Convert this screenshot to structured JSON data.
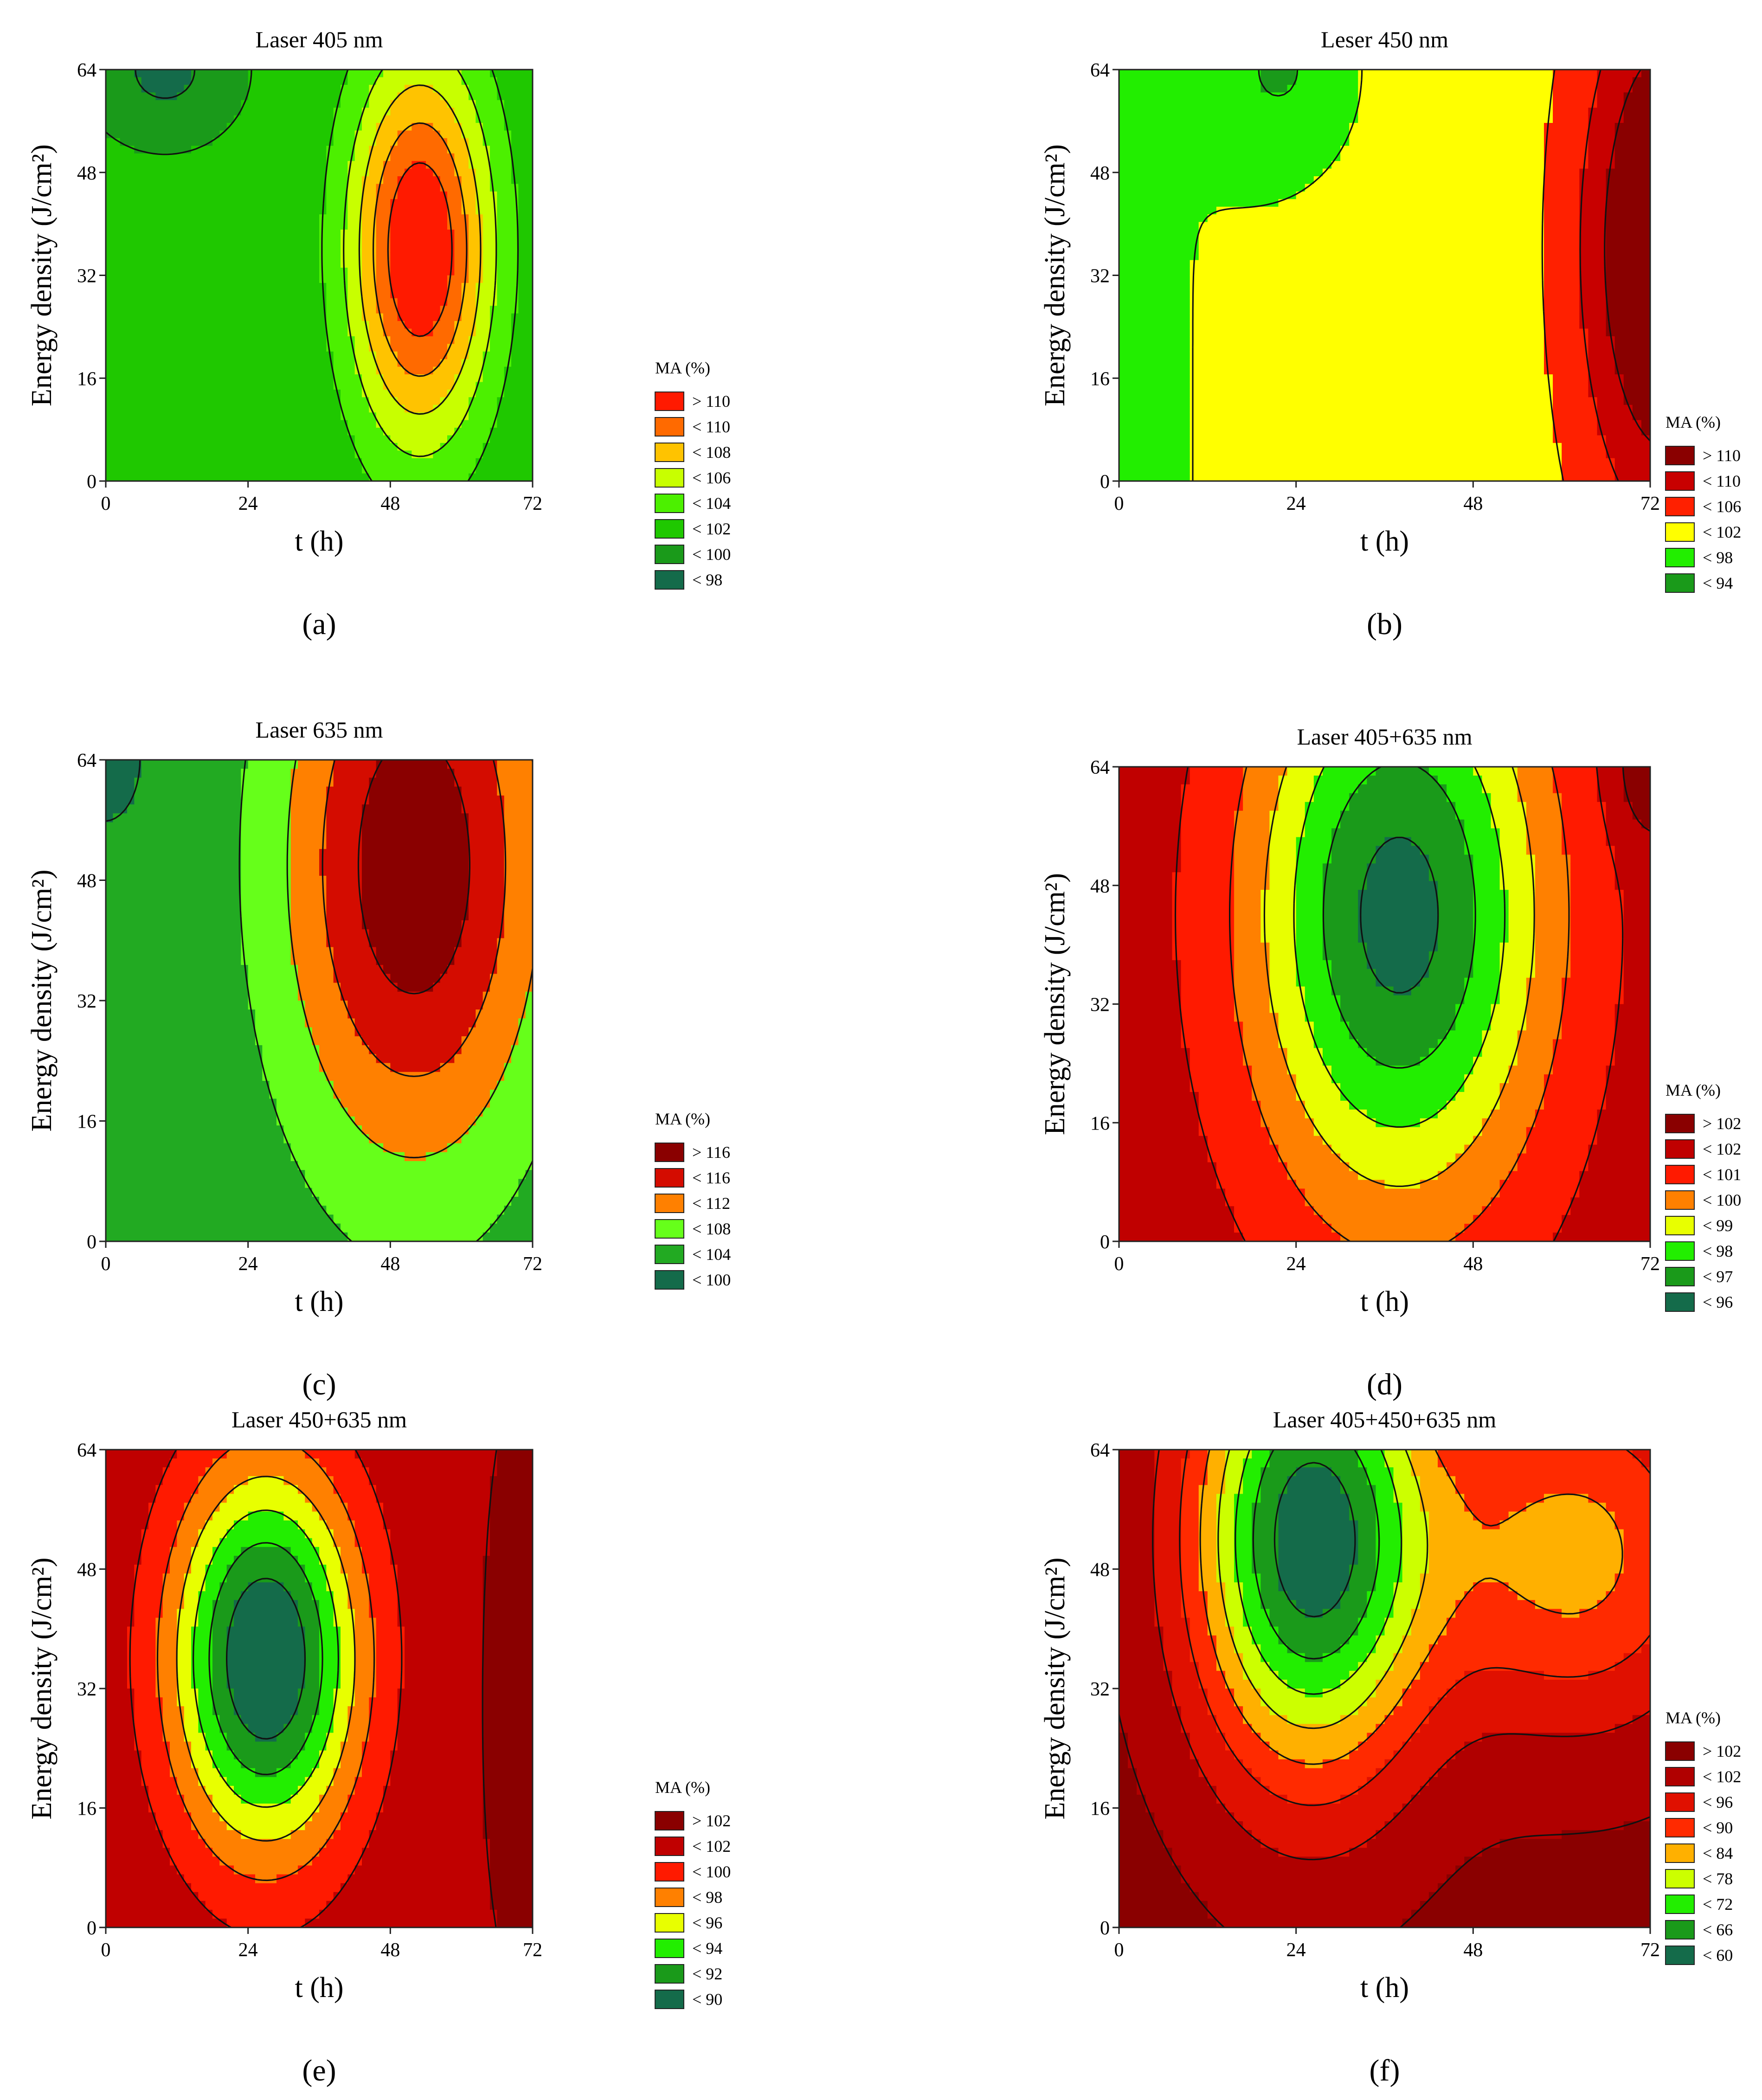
{
  "chart_data": [
    {
      "type": "contour",
      "panel": "a",
      "caption": "(a)",
      "title": "Laser 405 nm",
      "xlabel": "t (h)",
      "ylabel": "Energy density (J/cm²)",
      "xticks": [
        "0",
        "24",
        "48",
        "72"
      ],
      "yticks": [
        "0",
        "16",
        "32",
        "48",
        "64"
      ],
      "xlim": [
        0,
        72
      ],
      "ylim": [
        0,
        64
      ],
      "dashed_contours": true,
      "legend_title": "MA (%)",
      "legend": [
        {
          "label": "> 110",
          "color": "#ff1a00"
        },
        {
          "label": "< 110",
          "color": "#ff6a00"
        },
        {
          "label": "< 108",
          "color": "#ffc300"
        },
        {
          "label": "< 106",
          "color": "#c8ff00"
        },
        {
          "label": "< 104",
          "color": "#4cf000"
        },
        {
          "label": "< 102",
          "color": "#1fc800"
        },
        {
          "label": "< 100",
          "color": "#1a9a1a"
        },
        {
          "label": "< 98",
          "color": "#146b4a"
        }
      ],
      "field": {
        "base": 100.2,
        "peaks": [
          {
            "x": 53,
            "y": 36,
            "sx": 12,
            "sy": 30,
            "a": 12
          },
          {
            "x": 10,
            "y": 64,
            "sx": 9,
            "sy": 8,
            "a": -3
          }
        ],
        "trend": {
          "x": 0,
          "y": 0,
          "xy": 0
        }
      }
    },
    {
      "type": "contour",
      "panel": "b",
      "caption": "(b)",
      "title": "Leser 450 nm",
      "xlabel": "t (h)",
      "ylabel": "Energy density (J/cm²)",
      "xticks": [
        "0",
        "24",
        "48",
        "72"
      ],
      "yticks": [
        "0",
        "16",
        "32",
        "48",
        "64"
      ],
      "xlim": [
        0,
        72
      ],
      "ylim": [
        0,
        64
      ],
      "dashed_contours": false,
      "legend_title": "MA (%)",
      "legend": [
        {
          "label": "> 110",
          "color": "#8a0000"
        },
        {
          "label": "< 110",
          "color": "#c80000"
        },
        {
          "label": "< 106",
          "color": "#ff2000"
        },
        {
          "label": "< 102",
          "color": "#ffff00"
        },
        {
          "label": "< 98",
          "color": "#22ee00"
        },
        {
          "label": "< 94",
          "color": "#1a9a1a"
        }
      ],
      "field": {
        "base": 97.5,
        "peaks": [
          {
            "x": 74,
            "y": 36,
            "sx": 11,
            "sy": 40,
            "a": 16
          },
          {
            "x": 22,
            "y": 64,
            "sx": 9,
            "sy": 14,
            "a": -5
          }
        ],
        "trend": {
          "x": 0.05,
          "y": 0,
          "xy": 0
        }
      }
    },
    {
      "type": "contour",
      "panel": "c",
      "caption": "(c)",
      "title": "Laser 635 nm",
      "xlabel": "t (h)",
      "ylabel": "Energy density (J/cm²)",
      "xticks": [
        "0",
        "24",
        "48",
        "72"
      ],
      "yticks": [
        "0",
        "16",
        "32",
        "48",
        "64"
      ],
      "xlim": [
        0,
        72
      ],
      "ylim": [
        0,
        64
      ],
      "dashed_contours": false,
      "legend_title": "MA (%)",
      "legend": [
        {
          "label": "> 116",
          "color": "#8a0000"
        },
        {
          "label": "< 116",
          "color": "#d40c00"
        },
        {
          "label": "< 112",
          "color": "#ff8000"
        },
        {
          "label": "< 108",
          "color": "#66ff1a"
        },
        {
          "label": "< 104",
          "color": "#22aa22"
        },
        {
          "label": "< 100",
          "color": "#146b4a"
        }
      ],
      "field": {
        "base": 101,
        "peaks": [
          {
            "x": 52,
            "y": 50,
            "sx": 22,
            "sy": 40,
            "a": 18
          },
          {
            "x": 0,
            "y": 64,
            "sx": 6,
            "sy": 8,
            "a": -3
          }
        ],
        "trend": {
          "x": 0,
          "y": 0,
          "xy": 0
        }
      }
    },
    {
      "type": "contour",
      "panel": "d",
      "caption": "(d)",
      "title": "Laser 405+635 nm",
      "xlabel": "t (h)",
      "ylabel": "Energy density (J/cm²)",
      "xticks": [
        "0",
        "24",
        "48",
        "72"
      ],
      "yticks": [
        "0",
        "16",
        "32",
        "48",
        "64"
      ],
      "xlim": [
        0,
        72
      ],
      "ylim": [
        0,
        64
      ],
      "dashed_contours": false,
      "legend_title": "MA (%)",
      "legend": [
        {
          "label": "> 102",
          "color": "#8a0000"
        },
        {
          "label": "< 102",
          "color": "#c00000"
        },
        {
          "label": "< 101",
          "color": "#ff1a00"
        },
        {
          "label": "< 100",
          "color": "#ff8000"
        },
        {
          "label": "< 99",
          "color": "#e8ff00"
        },
        {
          "label": "< 98",
          "color": "#22ee00"
        },
        {
          "label": "< 97",
          "color": "#1a9a1a"
        },
        {
          "label": "< 96",
          "color": "#146b4a"
        }
      ],
      "field": {
        "base": 101.6,
        "peaks": [
          {
            "x": 38,
            "y": 44,
            "sx": 20,
            "sy": 40,
            "a": -6
          },
          {
            "x": 72,
            "y": 64,
            "sx": 5,
            "sy": 10,
            "a": 1.5
          }
        ],
        "trend": {
          "x": 0,
          "y": 0,
          "xy": 0
        }
      }
    },
    {
      "type": "contour",
      "panel": "e",
      "caption": "(e)",
      "title": "Laser 450+635 nm",
      "xlabel": "t (h)",
      "ylabel": "Energy density (J/cm²)",
      "xticks": [
        "0",
        "24",
        "48",
        "72"
      ],
      "yticks": [
        "0",
        "16",
        "32",
        "48",
        "64"
      ],
      "xlim": [
        0,
        72
      ],
      "ylim": [
        0,
        64
      ],
      "dashed_contours": false,
      "legend_title": "MA (%)",
      "legend": [
        {
          "label": "> 102",
          "color": "#8a0000"
        },
        {
          "label": "< 102",
          "color": "#c00000"
        },
        {
          "label": "< 100",
          "color": "#ff1a00"
        },
        {
          "label": "< 98",
          "color": "#ff8000"
        },
        {
          "label": "< 96",
          "color": "#e8ff00"
        },
        {
          "label": "< 94",
          "color": "#22ee00"
        },
        {
          "label": "< 92",
          "color": "#1a9a1a"
        },
        {
          "label": "< 90",
          "color": "#146b4a"
        }
      ],
      "field": {
        "base": 101.8,
        "peaks": [
          {
            "x": 27,
            "y": 36,
            "sx": 16,
            "sy": 26,
            "a": -14
          },
          {
            "x": 74,
            "y": 32,
            "sx": 7,
            "sy": 30,
            "a": 2.5
          }
        ],
        "trend": {
          "x": 0,
          "y": 0,
          "xy": 0
        }
      }
    },
    {
      "type": "contour",
      "panel": "f",
      "caption": "(f)",
      "title": "Laser 405+450+635 nm",
      "xlabel": "t (h)",
      "ylabel": "Energy density (J/cm²)",
      "xticks": [
        "0",
        "24",
        "48",
        "72"
      ],
      "yticks": [
        "0",
        "16",
        "32",
        "48",
        "64"
      ],
      "xlim": [
        0,
        72
      ],
      "ylim": [
        0,
        64
      ],
      "dashed_contours": false,
      "legend_title": "MA (%)",
      "legend": [
        {
          "label": "> 102",
          "color": "#8a0000"
        },
        {
          "label": "< 102",
          "color": "#b00000"
        },
        {
          "label": "< 96",
          "color": "#e01000"
        },
        {
          "label": "< 90",
          "color": "#ff2a00"
        },
        {
          "label": "< 84",
          "color": "#ffb000"
        },
        {
          "label": "< 78",
          "color": "#ccff00"
        },
        {
          "label": "< 72",
          "color": "#22ee00"
        },
        {
          "label": "< 66",
          "color": "#1a9a1a"
        },
        {
          "label": "< 60",
          "color": "#146b4a"
        }
      ],
      "field": {
        "base": 104,
        "peaks": [
          {
            "x": 26,
            "y": 52,
            "sx": 16,
            "sy": 32,
            "a": -48
          },
          {
            "x": 62,
            "y": 50,
            "sx": 20,
            "sy": 24,
            "a": -22
          }
        ],
        "trend": {
          "x": 0,
          "y": 0,
          "xy": 0
        }
      }
    }
  ]
}
